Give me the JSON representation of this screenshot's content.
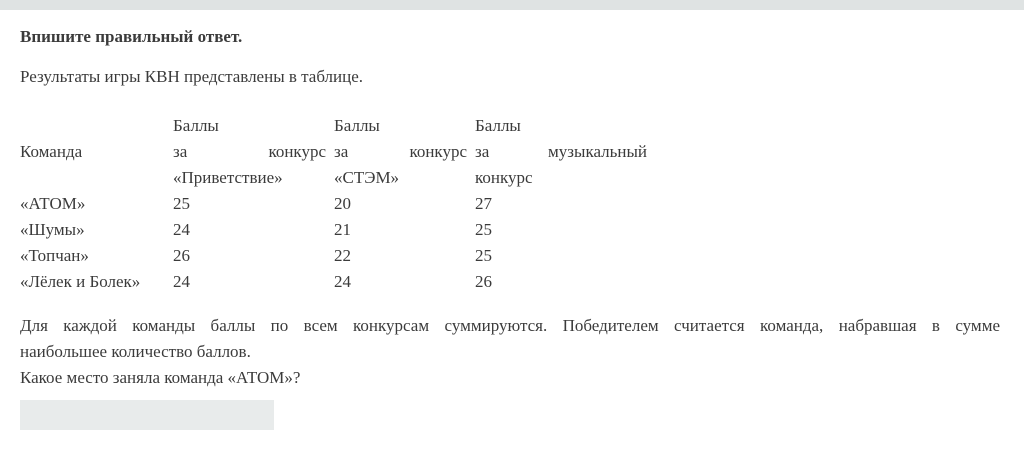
{
  "page": {
    "background": "#ffffff",
    "top_bar_color": "#dfe3e3",
    "text_color": "#3b3b3b",
    "input_fill_color": "#e8ebeb"
  },
  "prompt": {
    "title": "Впишите правильный ответ.",
    "intro": "Результаты игры КВН представлены в таблице."
  },
  "table": {
    "header": {
      "col1": "Команда",
      "col2": {
        "line1": "Баллы",
        "line2_left": "за",
        "line2_right": "конкурс",
        "line3": "«Приветствие»"
      },
      "col3": {
        "line1": "Баллы",
        "line2_left": "за",
        "line2_right": "конкурс",
        "line3": "«СТЭМ»"
      },
      "col4": {
        "line1": "Баллы",
        "line2_left": "за",
        "line2_right": "музыкальный",
        "line3": "конкурс"
      }
    },
    "rows": [
      {
        "team": "«АТОМ»",
        "score1": "25",
        "score2": "20",
        "score3": "27"
      },
      {
        "team": "«Шумы»",
        "score1": "24",
        "score2": "21",
        "score3": "25"
      },
      {
        "team": "«Топчан»",
        "score1": "26",
        "score2": "22",
        "score3": "25"
      },
      {
        "team": "«Лёлек и Болек»",
        "score1": "24",
        "score2": "24",
        "score3": "26"
      }
    ]
  },
  "body_text": {
    "line1": "Для каждой команды баллы по всем конкурсам суммируются. Победителем считается команда, набравшая в сумме",
    "line2": "наибольшее количество баллов.",
    "question": "Какое место заняла команда «АТОМ»?"
  },
  "answer_input": {
    "value": "",
    "placeholder": ""
  }
}
